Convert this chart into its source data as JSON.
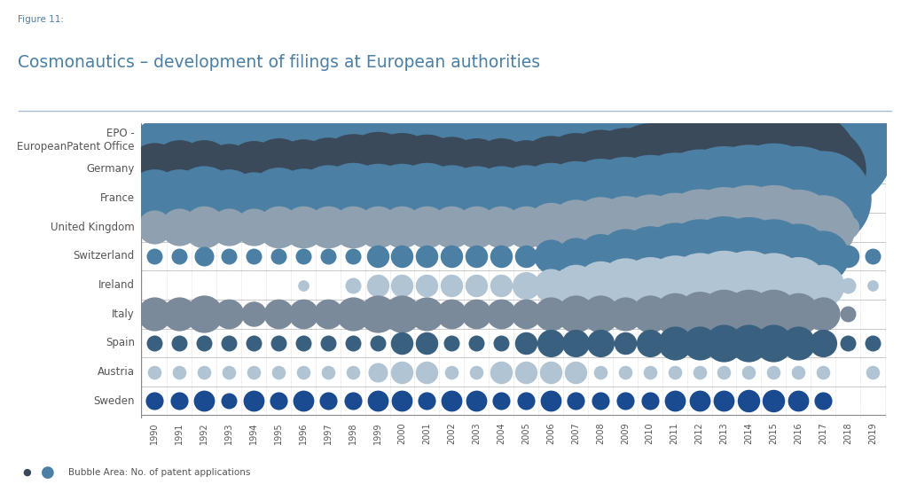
{
  "figure_label": "Figure 11:",
  "title": "Cosmonautics – development of filings at European authorities",
  "years": [
    1990,
    1991,
    1992,
    1993,
    1994,
    1995,
    1996,
    1997,
    1998,
    1999,
    2000,
    2001,
    2002,
    2003,
    2004,
    2005,
    2006,
    2007,
    2008,
    2009,
    2010,
    2011,
    2012,
    2013,
    2014,
    2015,
    2016,
    2017,
    2018,
    2019
  ],
  "countries": [
    "EPO -\nEuropeanPatent Office",
    "Germany",
    "France",
    "United Kingdom",
    "Switzerland",
    "Ireland",
    "Italy",
    "Spain",
    "Austria",
    "Sweden"
  ],
  "colors": {
    "EPO -\nEuropeanPatent Office": "#4b7fa3",
    "Germany": "#3a4a5a",
    "France": "#4b7fa3",
    "United Kingdom": "#8fa0b0",
    "Switzerland": "#4b7fa3",
    "Ireland": "#b0c4d4",
    "Italy": "#7a8a9a",
    "Spain": "#3a6080",
    "Austria": "#b0c4d4",
    "Sweden": "#1a4a90"
  },
  "data": {
    "EPO -\nEuropeanPatent Office": [
      25,
      45,
      50,
      28,
      48,
      55,
      65,
      75,
      100,
      115,
      105,
      110,
      100,
      105,
      100,
      100,
      115,
      130,
      155,
      170,
      190,
      210,
      240,
      275,
      305,
      370,
      410,
      330,
      22,
      0
    ],
    "Germany": [
      45,
      55,
      55,
      42,
      52,
      62,
      58,
      65,
      80,
      90,
      85,
      78,
      68,
      62,
      62,
      55,
      72,
      85,
      100,
      110,
      135,
      175,
      215,
      300,
      305,
      270,
      240,
      115,
      18,
      0
    ],
    "France": [
      55,
      55,
      68,
      55,
      45,
      62,
      58,
      72,
      82,
      78,
      78,
      82,
      72,
      68,
      68,
      72,
      82,
      90,
      102,
      112,
      122,
      135,
      155,
      175,
      185,
      195,
      175,
      145,
      12,
      0
    ],
    "United Kingdom": [
      18,
      22,
      28,
      22,
      22,
      28,
      28,
      28,
      28,
      28,
      28,
      28,
      28,
      28,
      28,
      28,
      38,
      48,
      58,
      62,
      68,
      75,
      92,
      102,
      112,
      112,
      90,
      65,
      8,
      0
    ],
    "Switzerland": [
      4,
      4,
      6,
      4,
      4,
      4,
      4,
      4,
      4,
      8,
      8,
      8,
      8,
      8,
      8,
      8,
      18,
      22,
      32,
      48,
      58,
      72,
      88,
      102,
      98,
      88,
      68,
      42,
      8,
      4
    ],
    "Ireland": [
      0,
      0,
      0,
      0,
      0,
      0,
      2,
      0,
      4,
      8,
      8,
      8,
      8,
      8,
      8,
      12,
      18,
      28,
      38,
      48,
      52,
      58,
      68,
      78,
      78,
      68,
      52,
      28,
      4,
      2
    ],
    "Italy": [
      18,
      18,
      22,
      14,
      10,
      14,
      14,
      14,
      18,
      22,
      22,
      18,
      14,
      14,
      14,
      14,
      18,
      22,
      22,
      18,
      22,
      28,
      32,
      38,
      38,
      38,
      28,
      18,
      4,
      0
    ],
    "Spain": [
      4,
      4,
      4,
      4,
      4,
      4,
      4,
      4,
      4,
      4,
      8,
      8,
      4,
      4,
      4,
      8,
      12,
      12,
      12,
      8,
      12,
      18,
      18,
      22,
      22,
      22,
      18,
      12,
      4,
      4
    ],
    "Austria": [
      3,
      3,
      3,
      3,
      3,
      3,
      3,
      3,
      3,
      6,
      8,
      8,
      3,
      3,
      8,
      8,
      8,
      8,
      3,
      3,
      3,
      3,
      3,
      3,
      3,
      3,
      3,
      3,
      0,
      3
    ],
    "Sweden": [
      5,
      5,
      7,
      4,
      7,
      5,
      7,
      5,
      5,
      7,
      7,
      5,
      7,
      7,
      5,
      5,
      7,
      5,
      5,
      5,
      5,
      7,
      7,
      7,
      8,
      8,
      7,
      5,
      0,
      0
    ]
  },
  "background_color": "#ffffff",
  "grid_color": "#cccccc",
  "title_color": "#4b7fa3",
  "figure_label_color": "#4b7fa3",
  "legend_text": "Bubble Area: No. of patent applications",
  "scale": 0.85
}
